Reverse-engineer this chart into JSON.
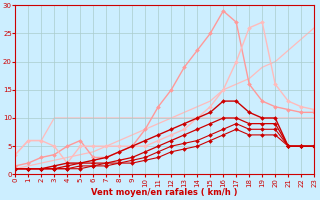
{
  "background_color": "#cceeff",
  "grid_color": "#aacccc",
  "xlabel": "Vent moyen/en rafales ( km/h )",
  "xlabel_color": "#cc0000",
  "tick_color": "#cc0000",
  "xlim": [
    0,
    23
  ],
  "ylim": [
    0,
    30
  ],
  "xticks": [
    0,
    1,
    2,
    3,
    4,
    5,
    6,
    7,
    8,
    9,
    10,
    11,
    12,
    13,
    14,
    15,
    16,
    17,
    18,
    19,
    20,
    21,
    22,
    23
  ],
  "yticks": [
    0,
    5,
    10,
    15,
    20,
    25,
    30
  ],
  "series": [
    {
      "x": [
        0,
        1,
        2,
        3,
        4,
        5,
        6,
        7,
        8,
        9,
        10,
        11,
        12,
        13,
        14,
        15,
        16,
        17,
        18,
        19,
        20,
        21,
        22,
        23
      ],
      "y": [
        3.5,
        6,
        6,
        10,
        10,
        10,
        10,
        10,
        10,
        10,
        10,
        10,
        10,
        10,
        10,
        10,
        10,
        10,
        10,
        10,
        10,
        10,
        10,
        10
      ],
      "color": "#ffbbbb",
      "linewidth": 0.9,
      "marker": null,
      "markersize": 0
    },
    {
      "x": [
        0,
        1,
        2,
        3,
        4,
        5,
        6,
        7,
        8,
        9,
        10,
        11,
        12,
        13,
        14,
        15,
        16,
        17,
        18,
        19,
        20,
        21,
        22,
        23
      ],
      "y": [
        1,
        1.5,
        2,
        2.5,
        3,
        3.5,
        4,
        5,
        6,
        7,
        8,
        9,
        10,
        11,
        12,
        13,
        15,
        16,
        17,
        19,
        20,
        22,
        24,
        26
      ],
      "color": "#ffbbbb",
      "linewidth": 0.9,
      "marker": null,
      "markersize": 0
    },
    {
      "x": [
        0,
        1,
        2,
        3,
        4,
        5,
        6,
        7,
        8,
        9,
        10,
        11,
        12,
        13,
        14,
        15,
        16,
        17,
        18,
        19,
        20,
        21,
        22,
        23
      ],
      "y": [
        1.5,
        2,
        3,
        3.5,
        5,
        6,
        3,
        3,
        4,
        5,
        8,
        12,
        15,
        19,
        22,
        25,
        29,
        27,
        16,
        13,
        12,
        11.5,
        11,
        11
      ],
      "color": "#ff9999",
      "linewidth": 1.0,
      "marker": "D",
      "markersize": 2.0
    },
    {
      "x": [
        0,
        1,
        2,
        3,
        4,
        5,
        6,
        7,
        8,
        9,
        10,
        11,
        12,
        13,
        14,
        15,
        16,
        17,
        18,
        19,
        20,
        21,
        22,
        23
      ],
      "y": [
        3.5,
        6,
        6,
        5,
        2,
        5,
        5,
        5,
        5,
        5,
        5,
        6,
        7,
        8,
        10,
        12,
        15,
        20,
        26,
        27,
        16,
        13,
        12,
        11.5
      ],
      "color": "#ffbbbb",
      "linewidth": 1.0,
      "marker": "D",
      "markersize": 2.0
    },
    {
      "x": [
        0,
        1,
        2,
        3,
        4,
        5,
        6,
        7,
        8,
        9,
        10,
        11,
        12,
        13,
        14,
        15,
        16,
        17,
        18,
        19,
        20,
        21,
        22,
        23
      ],
      "y": [
        1,
        1,
        1,
        1.5,
        2,
        2,
        2.5,
        3,
        4,
        5,
        6,
        7,
        8,
        9,
        10,
        11,
        13,
        13,
        11,
        10,
        10,
        5,
        5,
        5
      ],
      "color": "#cc0000",
      "linewidth": 1.0,
      "marker": "D",
      "markersize": 2.0
    },
    {
      "x": [
        0,
        1,
        2,
        3,
        4,
        5,
        6,
        7,
        8,
        9,
        10,
        11,
        12,
        13,
        14,
        15,
        16,
        17,
        18,
        19,
        20,
        21,
        22,
        23
      ],
      "y": [
        1,
        1,
        1,
        1,
        1.5,
        2,
        2,
        2,
        2.5,
        3,
        4,
        5,
        6,
        7,
        8,
        9,
        10,
        10,
        9,
        9,
        9,
        5,
        5,
        5
      ],
      "color": "#cc0000",
      "linewidth": 0.9,
      "marker": "D",
      "markersize": 2.0
    },
    {
      "x": [
        0,
        1,
        2,
        3,
        4,
        5,
        6,
        7,
        8,
        9,
        10,
        11,
        12,
        13,
        14,
        15,
        16,
        17,
        18,
        19,
        20,
        21,
        22,
        23
      ],
      "y": [
        1,
        1,
        1,
        1,
        1,
        1.5,
        1.5,
        2,
        2,
        2.5,
        3,
        4,
        5,
        5.5,
        6,
        7,
        8,
        9,
        8,
        8,
        8,
        5,
        5,
        5
      ],
      "color": "#cc0000",
      "linewidth": 0.8,
      "marker": "D",
      "markersize": 2.0
    },
    {
      "x": [
        0,
        1,
        2,
        3,
        4,
        5,
        6,
        7,
        8,
        9,
        10,
        11,
        12,
        13,
        14,
        15,
        16,
        17,
        18,
        19,
        20,
        21,
        22,
        23
      ],
      "y": [
        1,
        1,
        1,
        1,
        1,
        1,
        1.5,
        1.5,
        2,
        2,
        2.5,
        3,
        4,
        4.5,
        5,
        6,
        7,
        8,
        7,
        7,
        7,
        5,
        5,
        5
      ],
      "color": "#cc0000",
      "linewidth": 0.8,
      "marker": "D",
      "markersize": 2.0
    }
  ]
}
